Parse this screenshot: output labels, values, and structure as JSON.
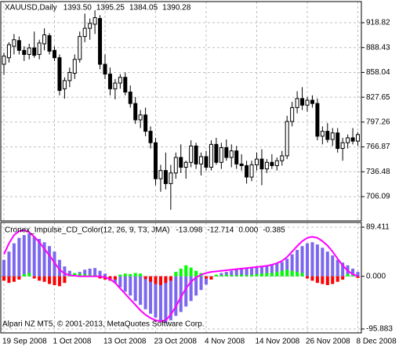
{
  "chart_data": [
    {
      "type": "candlestick",
      "title": "XAUUSD,Daily",
      "quote": [
        {
          "value": 1393.5,
          "label": "1393.50"
        },
        1395.25,
        1384.05,
        1390.28
      ],
      "categories": [
        "19 Sep 2008",
        null,
        null,
        null,
        null,
        null,
        null,
        null,
        null,
        null,
        "1 Oct 2008",
        null,
        null,
        null,
        null,
        null,
        null,
        null,
        null,
        null,
        "13 Oct 2008",
        null,
        null,
        null,
        null,
        null,
        null,
        null,
        null,
        null,
        "23 Oct 2008",
        null,
        null,
        null,
        null,
        null,
        null,
        null,
        null,
        null,
        "4 Nov 2008",
        null,
        null,
        null,
        null,
        null,
        null,
        null,
        null,
        null,
        "14 Nov 2008",
        null,
        null,
        null,
        null,
        null,
        null,
        null,
        null,
        null,
        "26 Nov 2008",
        null,
        null,
        null,
        null,
        null,
        null,
        null,
        null,
        null,
        "8 Dec 2008"
      ],
      "open": [
        868,
        876,
        890,
        897,
        885,
        880,
        888,
        880,
        893,
        903,
        885,
        876,
        838,
        848,
        857,
        874,
        902,
        912,
        917,
        924,
        868,
        856,
        838,
        845,
        852,
        834,
        820,
        800,
        806,
        786,
        772,
        728,
        738,
        722,
        735,
        754,
        742,
        748,
        768,
        746,
        755,
        742,
        770,
        748,
        766,
        754,
        762,
        746,
        744,
        730,
        745,
        752,
        740,
        748,
        744,
        750,
        756,
        798,
        815,
        826,
        818,
        824,
        820,
        780,
        786,
        776,
        784,
        765,
        772,
        778,
        774
      ],
      "high": [
        882,
        895,
        905,
        902,
        890,
        893,
        908,
        898,
        912,
        906,
        890,
        880,
        852,
        864,
        880,
        908,
        930,
        924,
        934,
        928,
        880,
        864,
        850,
        856,
        858,
        842,
        828,
        812,
        815,
        792,
        778,
        745,
        760,
        745,
        760,
        770,
        750,
        775,
        772,
        760,
        762,
        775,
        778,
        772,
        776,
        770,
        768,
        758,
        750,
        750,
        760,
        764,
        752,
        758,
        754,
        762,
        805,
        822,
        835,
        840,
        828,
        830,
        826,
        792,
        796,
        790,
        790,
        778,
        782,
        790,
        785
      ],
      "low": [
        855,
        870,
        880,
        880,
        872,
        874,
        876,
        874,
        885,
        880,
        872,
        830,
        826,
        840,
        850,
        870,
        895,
        898,
        905,
        862,
        850,
        830,
        825,
        838,
        830,
        815,
        795,
        790,
        780,
        765,
        720,
        712,
        715,
        690,
        728,
        735,
        728,
        742,
        740,
        732,
        738,
        738,
        745,
        740,
        750,
        742,
        740,
        738,
        722,
        725,
        738,
        720,
        735,
        740,
        738,
        744,
        752,
        792,
        808,
        812,
        810,
        815,
        775,
        770,
        772,
        768,
        760,
        750,
        765,
        770,
        768
      ],
      "close": [
        878,
        892,
        898,
        885,
        880,
        888,
        879,
        894,
        904,
        884,
        876,
        836,
        848,
        858,
        874,
        902,
        912,
        918,
        925,
        868,
        856,
        838,
        845,
        852,
        834,
        820,
        800,
        806,
        786,
        772,
        728,
        738,
        722,
        735,
        754,
        742,
        748,
        768,
        746,
        755,
        742,
        770,
        748,
        766,
        754,
        762,
        746,
        744,
        730,
        745,
        752,
        740,
        748,
        744,
        750,
        756,
        798,
        815,
        826,
        818,
        824,
        820,
        780,
        786,
        776,
        784,
        765,
        772,
        778,
        774,
        782
      ],
      "up_color": "#ffffff",
      "down_color": "#000000",
      "line_color": "#000000",
      "ylim": [
        676.4,
        944.7
      ],
      "yticks": [
        918.82,
        888.43,
        858.04,
        827.65,
        797.26,
        766.87,
        736.48,
        706.09
      ],
      "grid": true
    },
    {
      "type": "indicator",
      "title": "Cronex_Impulse_CD_Color(12, 26, 9, T3, JMA)",
      "readout": [
        -13.098,
        -12.714,
        {
          "value": 0,
          "label": "0.000"
        },
        -0.385
      ],
      "annotation": "Alpari NZ MT5, © 2001-2013, MetaQuotes Software Corp.",
      "series": [
        {
          "kind": "histogram",
          "color": "#7b68ee",
          "values": [
            30,
            45,
            60,
            70,
            75,
            78,
            72,
            68,
            62,
            55,
            45,
            30,
            18,
            10,
            5,
            8,
            12,
            14,
            15,
            10,
            5,
            -5,
            -12,
            -20,
            -28,
            -35,
            -45,
            -52,
            -60,
            -68,
            -75,
            -82,
            -85,
            -80,
            -72,
            -65,
            -55,
            -45,
            -35,
            -25,
            -15,
            -5,
            2,
            6,
            8,
            10,
            12,
            14,
            15,
            16,
            17,
            18,
            20,
            22,
            24,
            26,
            32,
            40,
            48,
            55,
            60,
            62,
            58,
            52,
            45,
            38,
            30,
            25,
            20,
            14,
            8
          ]
        },
        {
          "kind": "color_histogram",
          "up_color": "#00ff00",
          "down_color": "#ff0000",
          "values": [
            -8,
            -12,
            -10,
            -6,
            4,
            6,
            -4,
            -8,
            -10,
            -14,
            -16,
            -18,
            -12,
            4,
            6,
            5,
            4,
            3,
            2,
            -4,
            -6,
            -8,
            -6,
            3,
            5,
            4,
            6,
            5,
            -5,
            -10,
            -14,
            -16,
            -12,
            -8,
            8,
            14,
            20,
            16,
            10,
            6,
            -4,
            -6,
            3,
            2,
            3,
            2,
            2,
            3,
            2,
            3,
            4,
            5,
            6,
            6,
            8,
            10,
            12,
            10,
            8,
            6,
            -4,
            -8,
            -12,
            -14,
            -16,
            -14,
            -10,
            -6,
            4,
            2,
            -3
          ]
        },
        {
          "kind": "line",
          "color": "#ff00ff",
          "values": [
            40,
            60,
            75,
            82,
            84,
            80,
            72,
            62,
            50,
            38,
            25,
            12,
            5,
            2,
            1,
            0,
            0,
            0,
            0,
            0,
            -2,
            -5,
            -12,
            -22,
            -32,
            -42,
            -52,
            -62,
            -70,
            -76,
            -80,
            -82,
            -80,
            -70,
            -55,
            -38,
            -22,
            -10,
            -2,
            3,
            6,
            8,
            9,
            10,
            11,
            12,
            13,
            14,
            15,
            16,
            17,
            18,
            19,
            21,
            24,
            28,
            35,
            45,
            55,
            64,
            70,
            72,
            70,
            64,
            56,
            45,
            32,
            20,
            10,
            4,
            0
          ]
        }
      ],
      "ylim": [
        -103.0,
        98.0
      ],
      "yticks": [
        89.411,
        {
          "value": 0,
          "label": "0.000"
        },
        -95.883
      ],
      "grid": true
    }
  ]
}
